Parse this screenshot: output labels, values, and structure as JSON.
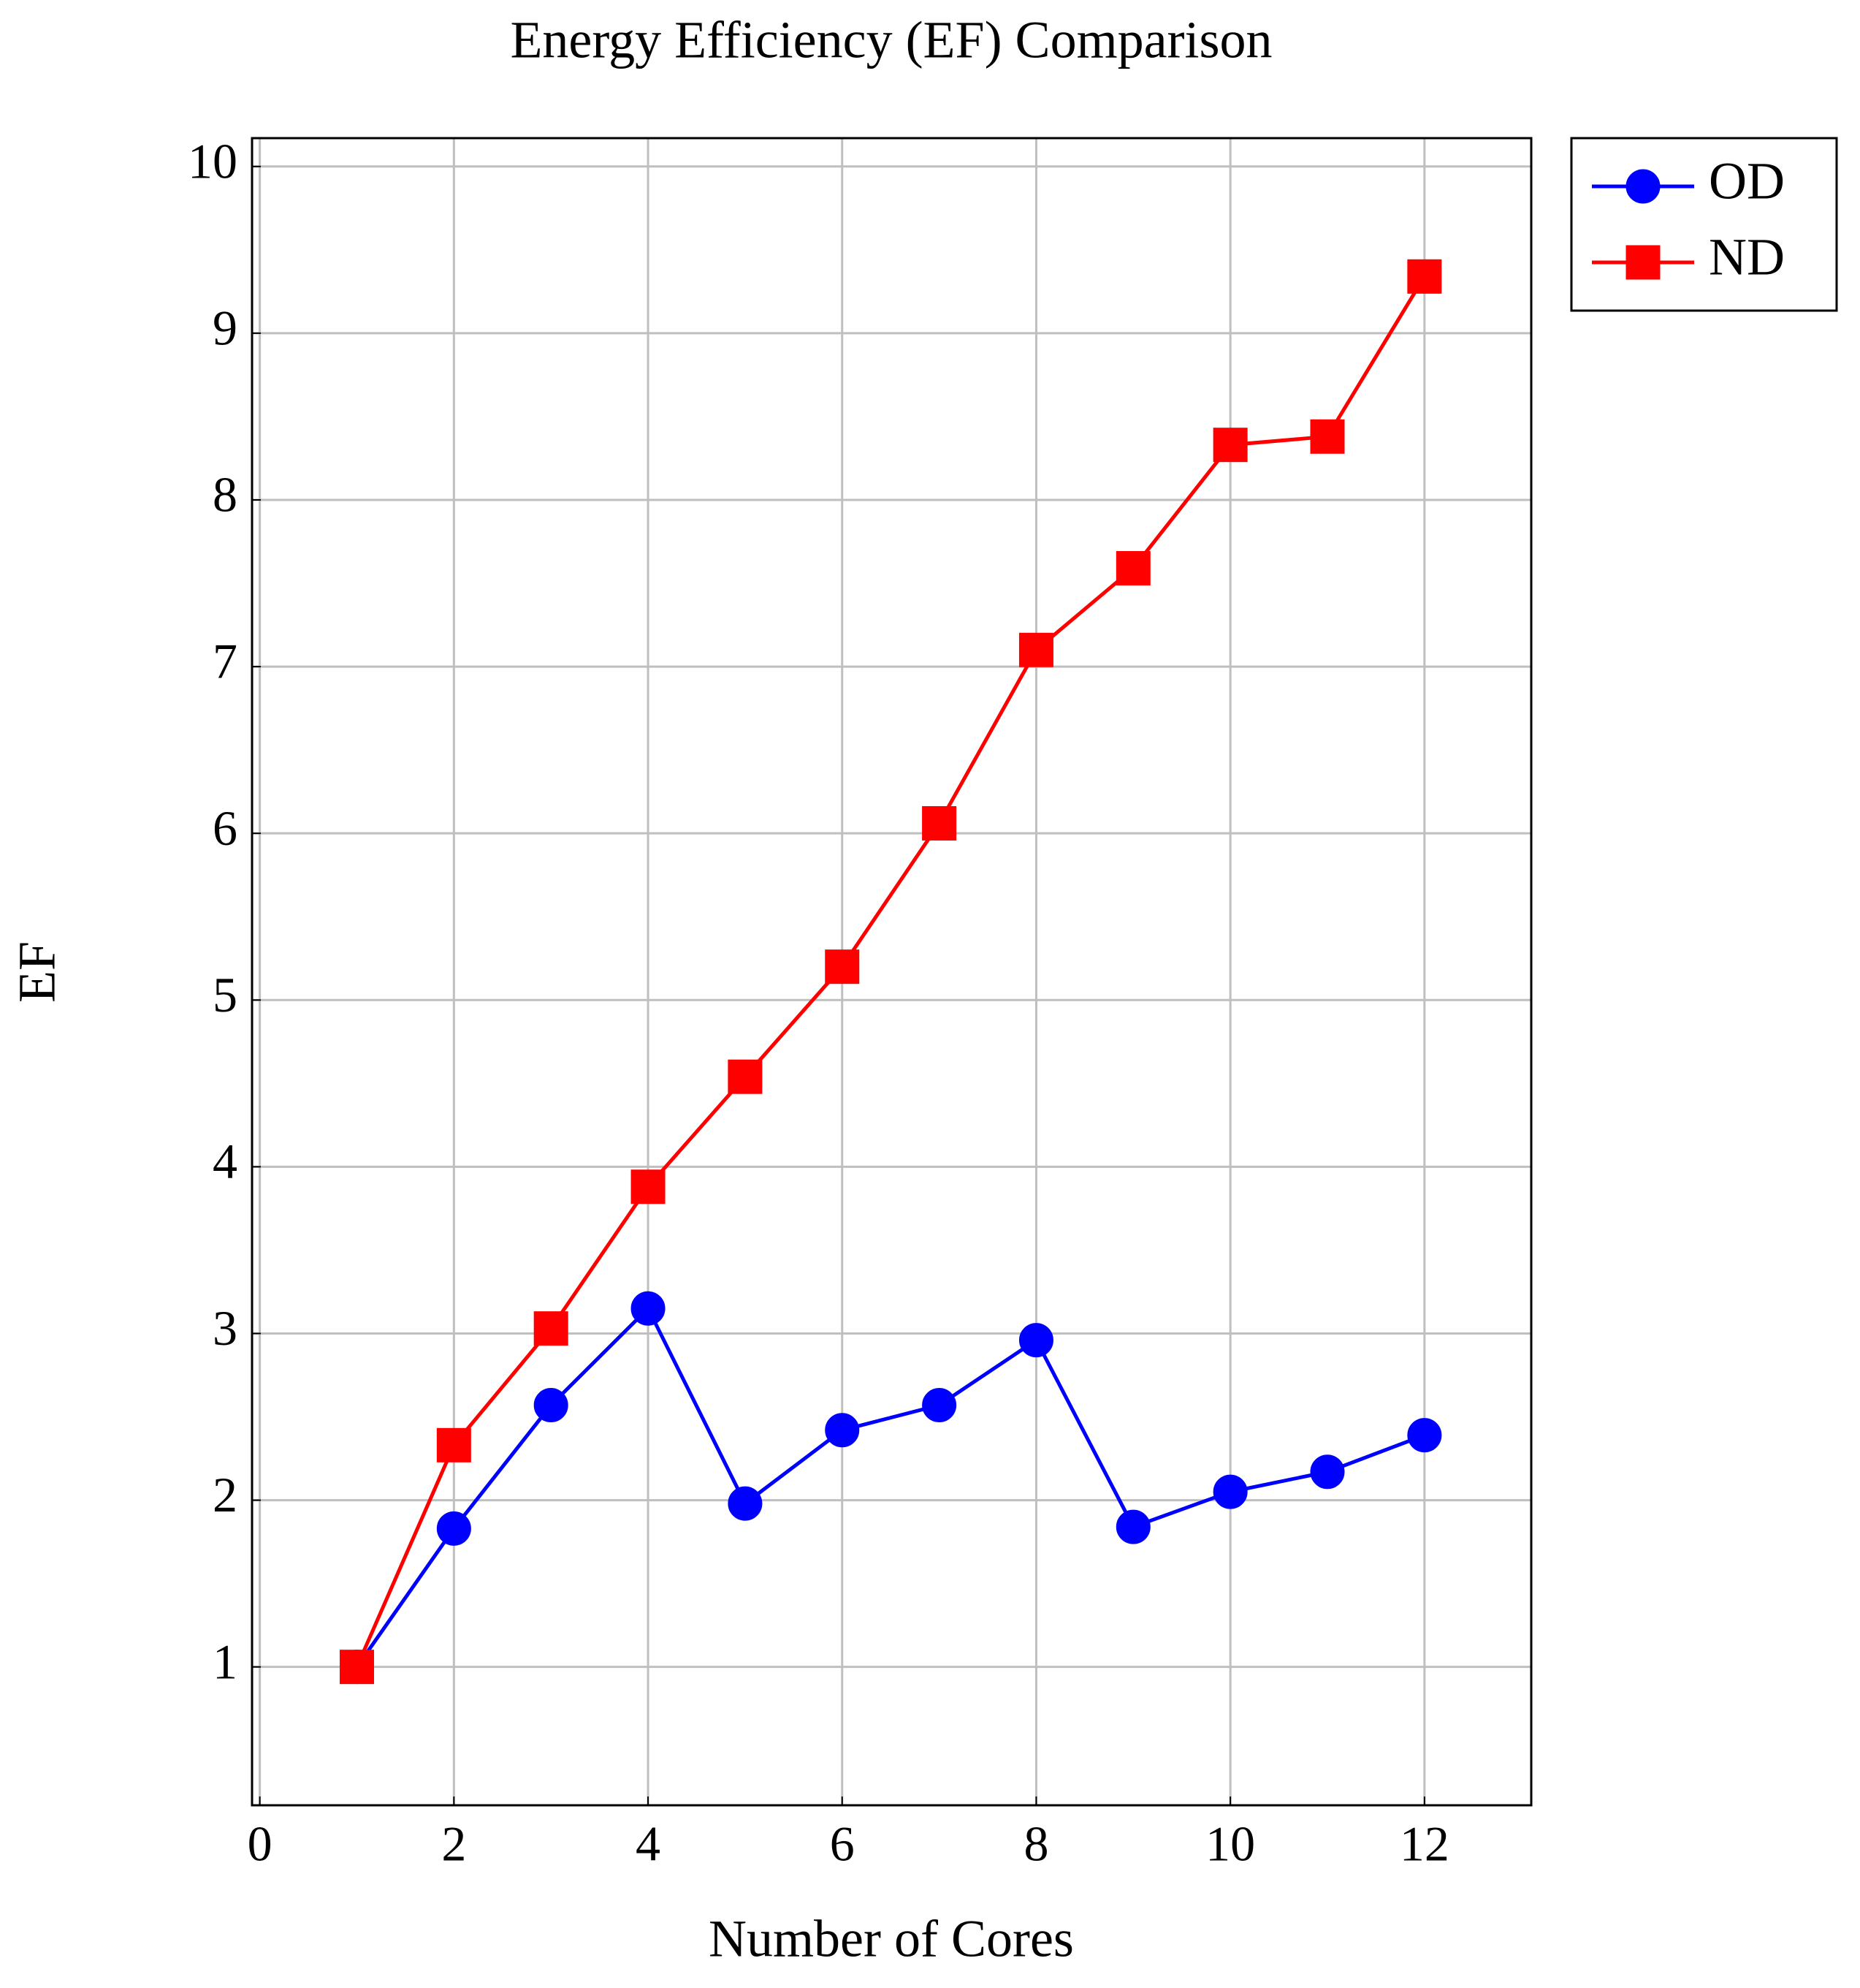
{
  "chart_data": {
    "type": "line",
    "title": "Energy Efficiency (EF) Comparison",
    "x_label": "Number of Cores",
    "y_label": "EF",
    "x": [
      1,
      2,
      3,
      4,
      5,
      6,
      7,
      8,
      9,
      10,
      11,
      12
    ],
    "series": [
      {
        "name": "OD",
        "color": "#0000ff",
        "marker": "circle",
        "values": [
          1,
          1.83,
          2.57,
          3.15,
          1.98,
          2.42,
          2.57,
          2.96,
          1.84,
          2.05,
          2.17,
          2.39
        ]
      },
      {
        "name": "ND",
        "color": "#ff0000",
        "marker": "square",
        "values": [
          1,
          2.33,
          3.03,
          3.88,
          4.54,
          5.2,
          6.06,
          7.1,
          7.59,
          8.33,
          8.38,
          9.34
        ]
      }
    ],
    "xlim": [
      -0.08,
      13.1
    ],
    "ylim": [
      0.17,
      10.17
    ],
    "xticks": [
      0,
      2,
      4,
      6,
      8,
      10,
      12
    ],
    "yticks": [
      1,
      2,
      3,
      4,
      5,
      6,
      7,
      8,
      9,
      10
    ],
    "grid": true,
    "legend": "outside-top-right"
  }
}
